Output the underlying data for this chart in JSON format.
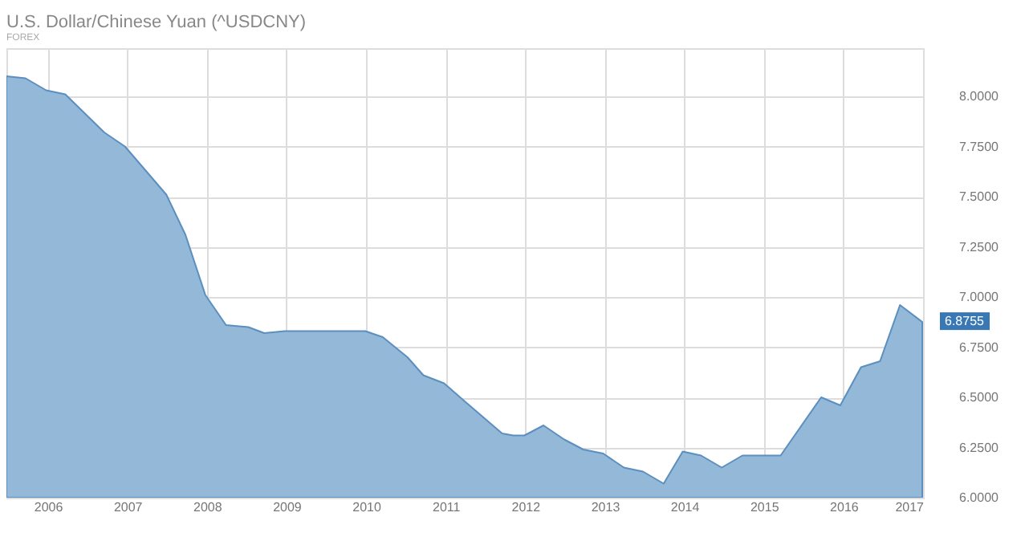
{
  "chart_data": {
    "type": "area",
    "title": "U.S. Dollar/Chinese Yuan (^USDCNY)",
    "subtitle": "FOREX",
    "x": [
      2005.48,
      2005.72,
      2005.98,
      2006.22,
      2006.71,
      2006.97,
      2007.49,
      2007.73,
      2007.98,
      2008.24,
      2008.52,
      2008.72,
      2008.98,
      2009.99,
      2010.21,
      2010.52,
      2010.72,
      2010.98,
      2011.24,
      2011.71,
      2011.85,
      2011.99,
      2012.23,
      2012.49,
      2012.73,
      2012.98,
      2013.24,
      2013.48,
      2013.74,
      2013.98,
      2014.21,
      2014.47,
      2014.73,
      2014.97,
      2015.21,
      2015.72,
      2015.96,
      2016.22,
      2016.46,
      2016.71,
      2016.99
    ],
    "series": [
      {
        "color": "#94b8d7",
        "values": [
          8.1,
          8.09,
          8.03,
          8.01,
          7.82,
          7.75,
          7.51,
          7.31,
          7.01,
          6.86,
          6.85,
          6.82,
          6.83,
          6.83,
          6.8,
          6.7,
          6.61,
          6.57,
          6.48,
          6.32,
          6.31,
          6.31,
          6.36,
          6.29,
          6.24,
          6.22,
          6.15,
          6.13,
          6.07,
          6.23,
          6.21,
          6.15,
          6.21,
          6.21,
          6.21,
          6.5,
          6.46,
          6.65,
          6.68,
          6.96,
          6.8755
        ]
      }
    ],
    "xlim": [
      2005.48,
      2017
    ],
    "xticks": [
      2006,
      2007,
      2008,
      2009,
      2010,
      2011,
      2012,
      2013,
      2014,
      2015,
      2016,
      2017
    ],
    "ylim": [
      6,
      8.24
    ],
    "yticks": [
      {
        "value": 6,
        "label": "6.0000"
      },
      {
        "value": 6.25,
        "label": "6.2500"
      },
      {
        "value": 6.5,
        "label": "6.5000"
      },
      {
        "value": 6.75,
        "label": "6.7500"
      },
      {
        "value": 7,
        "label": "7.0000"
      },
      {
        "value": 7.25,
        "label": "7.2500"
      },
      {
        "value": 7.5,
        "label": "7.5000"
      },
      {
        "value": 7.75,
        "label": "7.7500"
      },
      {
        "value": 8,
        "label": "8.0000"
      }
    ],
    "annotations": [
      {
        "text": "6.8755",
        "x": 2016.99,
        "y": 6.8755
      }
    ],
    "grid": true
  }
}
